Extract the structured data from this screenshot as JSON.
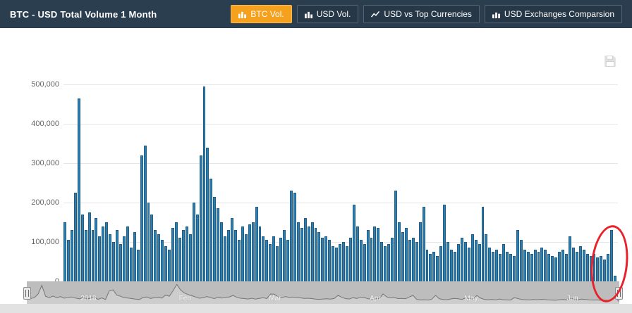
{
  "header": {
    "title": "BTC - USD Total Volume 1 Month",
    "buttons": [
      {
        "label": "BTC Vol.",
        "icon": "bar-chart-icon",
        "active": true
      },
      {
        "label": "USD Vol.",
        "icon": "bar-chart-icon",
        "active": false
      },
      {
        "label": "USD vs Top Currencies",
        "icon": "line-chart-icon",
        "active": false
      },
      {
        "label": "USD Exchanges Comparsion",
        "icon": "bar-chart-icon",
        "active": false
      }
    ]
  },
  "chart_data": {
    "type": "bar",
    "title": "BTC - USD Total Volume 1 Month",
    "xlabel": "",
    "ylabel": "",
    "ylim": [
      0,
      500000
    ],
    "yticks": [
      0,
      100000,
      200000,
      300000,
      400000,
      500000
    ],
    "ytick_labels": [
      "0",
      "100,000",
      "200,000",
      "300,000",
      "400,000",
      "500,000"
    ],
    "x_axis_labels": [
      "2018",
      "Feb",
      "Mar",
      "Apr",
      "May",
      "Jun"
    ],
    "grid": "horizontal",
    "legend": "off",
    "bar_color": "#2f7cad",
    "bar_border_color": "#1d5f87",
    "values": [
      150000,
      105000,
      130000,
      225000,
      465000,
      170000,
      130000,
      175000,
      130000,
      160000,
      115000,
      140000,
      150000,
      120000,
      100000,
      130000,
      95000,
      115000,
      140000,
      85000,
      125000,
      80000,
      320000,
      345000,
      200000,
      170000,
      130000,
      120000,
      105000,
      90000,
      80000,
      135000,
      150000,
      110000,
      130000,
      140000,
      120000,
      200000,
      170000,
      320000,
      495000,
      340000,
      260000,
      215000,
      185000,
      150000,
      115000,
      130000,
      160000,
      130000,
      105000,
      140000,
      120000,
      145000,
      150000,
      190000,
      140000,
      115000,
      105000,
      95000,
      115000,
      90000,
      110000,
      130000,
      105000,
      230000,
      225000,
      150000,
      135000,
      160000,
      140000,
      150000,
      135000,
      125000,
      110000,
      115000,
      105000,
      90000,
      85000,
      95000,
      100000,
      90000,
      110000,
      195000,
      140000,
      105000,
      95000,
      130000,
      110000,
      140000,
      135000,
      100000,
      90000,
      95000,
      110000,
      230000,
      150000,
      125000,
      135000,
      105000,
      110000,
      100000,
      150000,
      190000,
      80000,
      70000,
      75000,
      65000,
      90000,
      195000,
      100000,
      80000,
      75000,
      95000,
      110000,
      100000,
      85000,
      120000,
      105000,
      95000,
      190000,
      120000,
      85000,
      75000,
      80000,
      70000,
      95000,
      75000,
      70000,
      65000,
      130000,
      105000,
      80000,
      75000,
      70000,
      80000,
      75000,
      85000,
      80000,
      70000,
      65000,
      60000,
      75000,
      80000,
      70000,
      115000,
      85000,
      75000,
      90000,
      80000,
      70000,
      65000,
      70000,
      60000,
      65000,
      55000,
      70000,
      130000,
      15000
    ]
  },
  "navigator": {
    "labels": [
      {
        "text": "2018",
        "pct": 10.4
      },
      {
        "text": "Feb",
        "pct": 26.7
      },
      {
        "text": "Mar",
        "pct": 41.9
      },
      {
        "text": "Apr",
        "pct": 58.8
      },
      {
        "text": "May",
        "pct": 75.0
      },
      {
        "text": "Jun",
        "pct": 92.1
      }
    ]
  },
  "annotation": {
    "shape": "ellipse",
    "color": "#e8212b"
  }
}
